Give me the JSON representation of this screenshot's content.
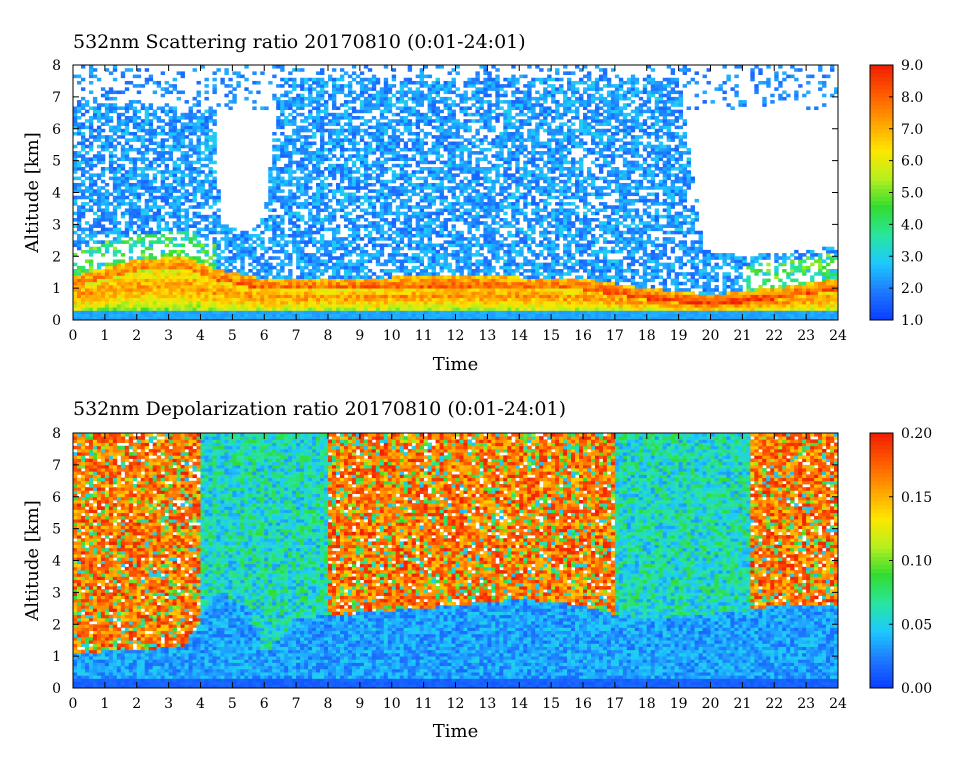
{
  "chart_data": [
    {
      "type": "heatmap",
      "title": "532nm Scattering ratio  20170810 (0:01-24:01)",
      "xlabel": "Time",
      "ylabel": "Altitude [km]",
      "xlim": [
        0,
        24
      ],
      "ylim": [
        0,
        8
      ],
      "x_ticks": [
        "0",
        "1",
        "2",
        "3",
        "4",
        "5",
        "6",
        "7",
        "8",
        "9",
        "10",
        "11",
        "12",
        "13",
        "14",
        "15",
        "16",
        "17",
        "18",
        "19",
        "20",
        "21",
        "22",
        "23",
        "24"
      ],
      "y_ticks": [
        "0",
        "1",
        "2",
        "3",
        "4",
        "5",
        "6",
        "7",
        "8"
      ],
      "colorbar": {
        "min": 1.0,
        "max": 9.0,
        "ticks": [
          "1.0",
          "2.0",
          "3.0",
          "4.0",
          "5.0",
          "6.0",
          "7.0",
          "8.0",
          "9.0"
        ]
      },
      "colormap": [
        "#0a3cff",
        "#1e78ff",
        "#1ec8ff",
        "#28e6a0",
        "#32dc32",
        "#b4f01e",
        "#ffe600",
        "#ffa000",
        "#ff5a00",
        "#f01e00"
      ]
    },
    {
      "type": "heatmap",
      "title": "532nm Depolarization ratio  20170810 (0:01-24:01)",
      "xlabel": "Time",
      "ylabel": "Altitude [km]",
      "xlim": [
        0,
        24
      ],
      "ylim": [
        0,
        8
      ],
      "x_ticks": [
        "0",
        "1",
        "2",
        "3",
        "4",
        "5",
        "6",
        "7",
        "8",
        "9",
        "10",
        "11",
        "12",
        "13",
        "14",
        "15",
        "16",
        "17",
        "18",
        "19",
        "20",
        "21",
        "22",
        "23",
        "24"
      ],
      "y_ticks": [
        "0",
        "1",
        "2",
        "3",
        "4",
        "5",
        "6",
        "7",
        "8"
      ],
      "colorbar": {
        "min": 0.0,
        "max": 0.2,
        "ticks": [
          "0.00",
          "0.05",
          "0.10",
          "0.15",
          "0.20"
        ]
      },
      "colormap": [
        "#0a3cff",
        "#1e78ff",
        "#1ec8ff",
        "#28e6a0",
        "#32dc32",
        "#b4f01e",
        "#ffe600",
        "#ffa000",
        "#ff5a00",
        "#f01e00"
      ]
    }
  ]
}
